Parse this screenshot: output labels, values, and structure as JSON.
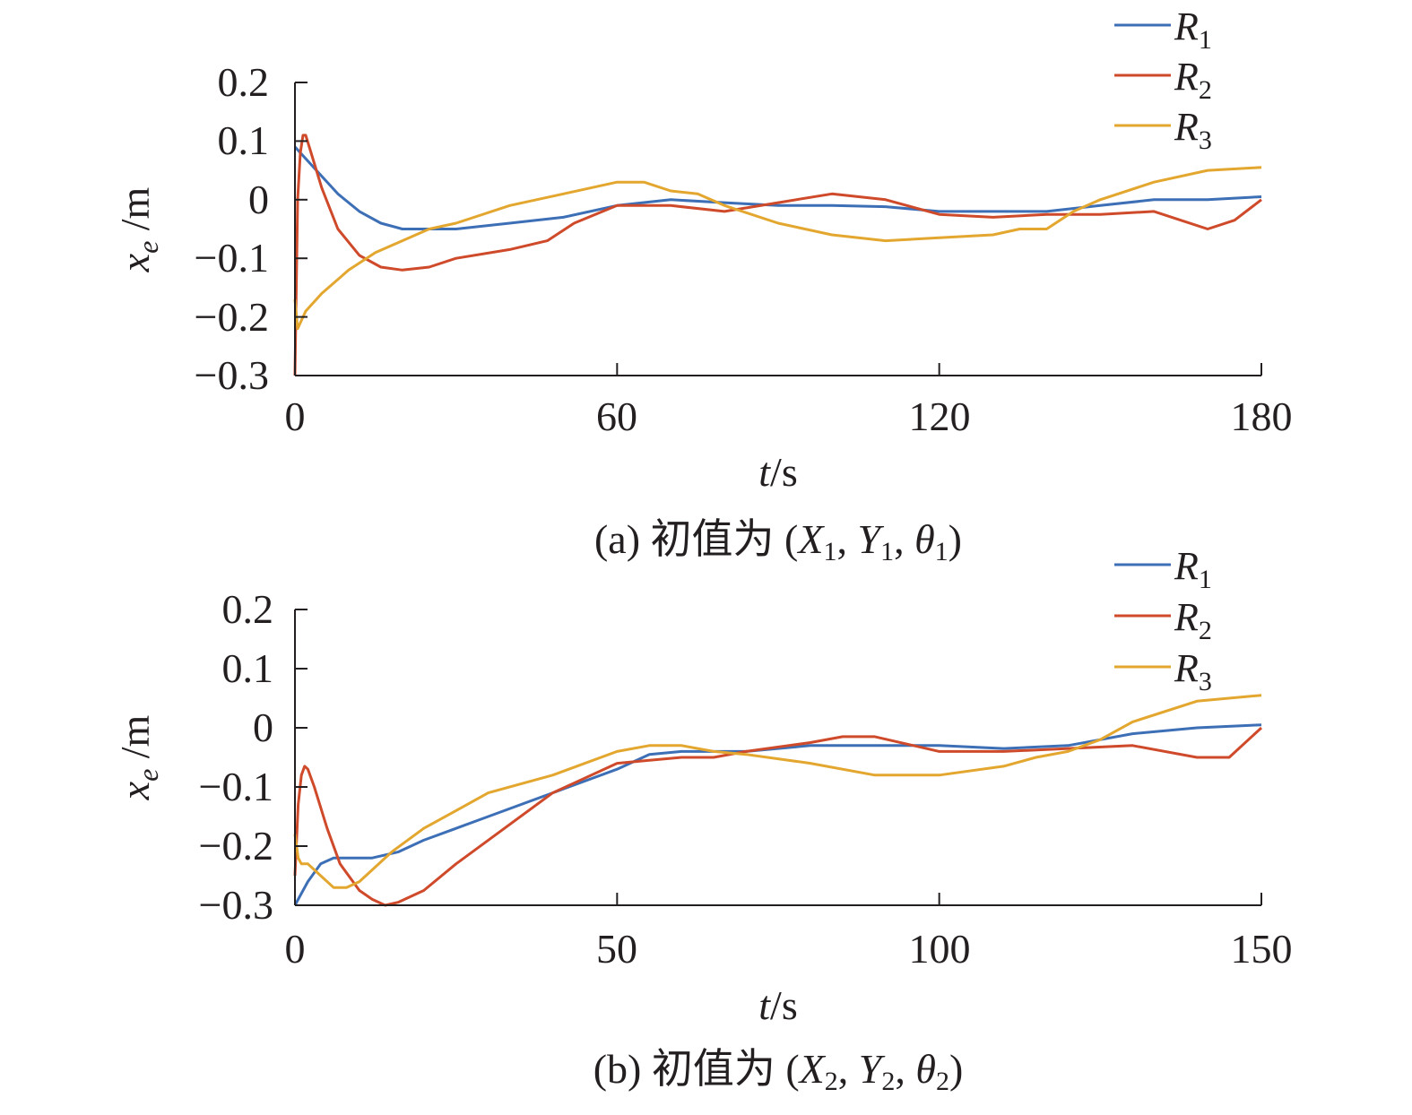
{
  "colors": {
    "R1": "#3d6fb6",
    "R2": "#cf4a2a",
    "R3": "#e3a72f",
    "axis": "#231f20"
  },
  "chart_data": [
    {
      "type": "line",
      "caption_prefix": "(a) 初值为 (",
      "caption_vars": [
        {
          "base": "X",
          "sub": "1"
        },
        {
          "base": "Y",
          "sub": "1"
        },
        {
          "base": "θ",
          "sub": "1"
        }
      ],
      "caption_suffix": ")",
      "xlabel_var": "t",
      "xlabel_unit": "/s",
      "ylabel_var": "x",
      "ylabel_sub": "e",
      "ylabel_unit": " /m",
      "xlim": [
        0,
        180
      ],
      "ylim": [
        -0.3,
        0.2
      ],
      "xticks": [
        0,
        60,
        120,
        180
      ],
      "xtick_labels": [
        "0",
        "60",
        "120",
        "180"
      ],
      "yticks": [
        0.2,
        0.1,
        0,
        -0.1,
        -0.2,
        -0.3
      ],
      "ytick_labels": [
        "0.2",
        "0.1",
        "0",
        "−0.1",
        "−0.2",
        "−0.3"
      ],
      "legend_position": "top-right",
      "series": [
        {
          "name": "R1",
          "label_base": "R",
          "label_sub": "1",
          "x": [
            0,
            2,
            5,
            8,
            12,
            16,
            20,
            25,
            30,
            40,
            50,
            60,
            70,
            80,
            90,
            100,
            110,
            120,
            130,
            140,
            150,
            160,
            170,
            180
          ],
          "y": [
            0.09,
            0.07,
            0.04,
            0.01,
            -0.02,
            -0.04,
            -0.05,
            -0.05,
            -0.05,
            -0.04,
            -0.03,
            -0.01,
            0.0,
            -0.005,
            -0.01,
            -0.01,
            -0.012,
            -0.02,
            -0.02,
            -0.02,
            -0.01,
            0.0,
            0.0,
            0.005
          ]
        },
        {
          "name": "R2",
          "label_base": "R",
          "label_sub": "2",
          "x": [
            0,
            0.5,
            1,
            1.5,
            2,
            3,
            5,
            8,
            12,
            16,
            20,
            25,
            30,
            40,
            47,
            52,
            60,
            70,
            80,
            90,
            100,
            110,
            120,
            130,
            140,
            150,
            160,
            170,
            175,
            180
          ],
          "y": [
            -0.3,
            0.0,
            0.08,
            0.11,
            0.11,
            0.08,
            0.02,
            -0.05,
            -0.095,
            -0.115,
            -0.12,
            -0.115,
            -0.1,
            -0.085,
            -0.07,
            -0.04,
            -0.01,
            -0.01,
            -0.02,
            -0.005,
            0.01,
            0.0,
            -0.025,
            -0.03,
            -0.025,
            -0.025,
            -0.02,
            -0.05,
            -0.035,
            0.0
          ]
        },
        {
          "name": "R3",
          "label_base": "R",
          "label_sub": "3",
          "x": [
            0,
            0.5,
            1,
            2,
            5,
            10,
            15,
            20,
            25,
            30,
            40,
            50,
            60,
            65,
            70,
            75,
            80,
            90,
            100,
            110,
            120,
            130,
            135,
            140,
            145,
            150,
            160,
            170,
            180
          ],
          "y": [
            -0.17,
            -0.22,
            -0.21,
            -0.19,
            -0.16,
            -0.12,
            -0.09,
            -0.07,
            -0.05,
            -0.04,
            -0.01,
            0.01,
            0.03,
            0.03,
            0.015,
            0.01,
            -0.01,
            -0.04,
            -0.06,
            -0.07,
            -0.065,
            -0.06,
            -0.05,
            -0.05,
            -0.02,
            0.0,
            0.03,
            0.05,
            0.055
          ]
        }
      ]
    },
    {
      "type": "line",
      "caption_prefix": "(b) 初值为 (",
      "caption_vars": [
        {
          "base": "X",
          "sub": "2"
        },
        {
          "base": "Y",
          "sub": "2"
        },
        {
          "base": "θ",
          "sub": "2"
        }
      ],
      "caption_suffix": ")",
      "xlabel_var": "t",
      "xlabel_unit": "/s",
      "ylabel_var": "x",
      "ylabel_sub": "e",
      "ylabel_unit": " /m",
      "xlim": [
        0,
        150
      ],
      "ylim": [
        -0.3,
        0.2
      ],
      "xticks": [
        0,
        50,
        100,
        150
      ],
      "xtick_labels": [
        "0",
        "50",
        "100",
        "150"
      ],
      "yticks": [
        0.2,
        0.1,
        0,
        -0.1,
        -0.2,
        -0.3
      ],
      "ytick_labels": [
        "0.2",
        "0.1",
        "0",
        "−0.1",
        "−0.2",
        "−0.3"
      ],
      "legend_position": "top-right",
      "series": [
        {
          "name": "R1",
          "label_base": "R",
          "label_sub": "1",
          "x": [
            0,
            2,
            4,
            6,
            8,
            12,
            16,
            20,
            25,
            30,
            40,
            50,
            55,
            60,
            70,
            80,
            90,
            100,
            110,
            120,
            130,
            140,
            150
          ],
          "y": [
            -0.3,
            -0.26,
            -0.23,
            -0.22,
            -0.22,
            -0.22,
            -0.21,
            -0.19,
            -0.17,
            -0.15,
            -0.11,
            -0.07,
            -0.045,
            -0.04,
            -0.04,
            -0.03,
            -0.03,
            -0.03,
            -0.035,
            -0.03,
            -0.01,
            0.0,
            0.005
          ]
        },
        {
          "name": "R2",
          "label_base": "R",
          "label_sub": "2",
          "x": [
            0,
            0.5,
            1,
            1.5,
            2,
            3,
            5,
            7,
            10,
            12,
            14,
            16,
            20,
            25,
            30,
            40,
            50,
            55,
            60,
            65,
            70,
            80,
            85,
            90,
            100,
            110,
            120,
            130,
            140,
            145,
            150
          ],
          "y": [
            -0.25,
            -0.13,
            -0.08,
            -0.065,
            -0.07,
            -0.1,
            -0.17,
            -0.23,
            -0.275,
            -0.29,
            -0.3,
            -0.295,
            -0.275,
            -0.23,
            -0.19,
            -0.11,
            -0.06,
            -0.055,
            -0.05,
            -0.05,
            -0.04,
            -0.025,
            -0.015,
            -0.015,
            -0.04,
            -0.04,
            -0.035,
            -0.03,
            -0.05,
            -0.05,
            0.0
          ]
        },
        {
          "name": "R3",
          "label_base": "R",
          "label_sub": "3",
          "x": [
            0,
            0.5,
            1,
            2,
            4,
            6,
            8,
            10,
            15,
            20,
            25,
            30,
            40,
            50,
            55,
            60,
            65,
            70,
            80,
            90,
            100,
            110,
            115,
            120,
            125,
            130,
            140,
            150
          ],
          "y": [
            -0.18,
            -0.22,
            -0.23,
            -0.23,
            -0.25,
            -0.27,
            -0.27,
            -0.26,
            -0.21,
            -0.17,
            -0.14,
            -0.11,
            -0.08,
            -0.04,
            -0.03,
            -0.03,
            -0.04,
            -0.045,
            -0.06,
            -0.08,
            -0.08,
            -0.065,
            -0.05,
            -0.04,
            -0.02,
            0.01,
            0.045,
            0.055
          ]
        }
      ]
    }
  ]
}
